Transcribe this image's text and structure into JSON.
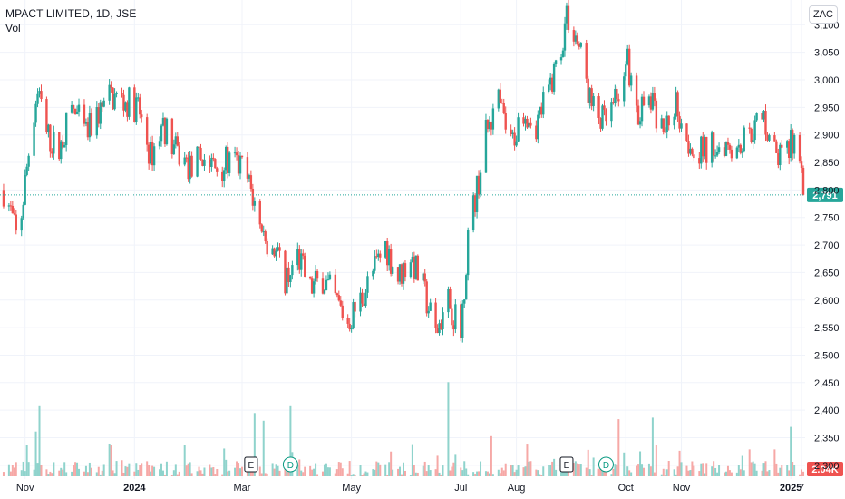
{
  "header": {
    "title": "MPACT LIMITED, 1D, JSE",
    "volume_label": "Vol"
  },
  "currency_button": "ZAC",
  "colors": {
    "up": "#26a69a",
    "down": "#ef5350",
    "up_volume": "#8fd3cc",
    "down_volume": "#f6a8a6",
    "grid": "#f0f3fa",
    "axis_text": "#131722",
    "last_price_line": "#26a69a"
  },
  "event_markers": [
    {
      "label": "E",
      "type": "earnings",
      "date": "2024-03-06"
    },
    {
      "label": "D",
      "type": "dividend",
      "date": "2024-03-28"
    },
    {
      "label": "E",
      "type": "earnings",
      "date": "2024-08-29"
    },
    {
      "label": "D",
      "type": "dividend",
      "date": "2024-09-20"
    }
  ],
  "chart_data": {
    "type": "candlestick",
    "title": "MPACT LIMITED, 1D, JSE",
    "currency": "ZAC",
    "y_axis": {
      "ticks": [
        "2,300",
        "2,350",
        "2,400",
        "2,450",
        "2,500",
        "2,550",
        "2,600",
        "2,650",
        "2,700",
        "2,750",
        "2,800",
        "2,850",
        "2,900",
        "2,950",
        "3,000",
        "3,050",
        "3,100"
      ],
      "range": [
        2275,
        3145
      ]
    },
    "x_axis": {
      "ticks": [
        "Nov",
        "2024",
        "Mar",
        "May",
        "Jul",
        "Aug",
        "Oct",
        "Nov",
        "2025",
        "7"
      ],
      "range": [
        "2023-10-18",
        "2025-01-09"
      ]
    },
    "last_price": "2,791",
    "last_volume": "2.04K",
    "price_path": [
      [
        "2023-10-20",
        2800
      ],
      [
        "2023-10-24",
        2760
      ],
      [
        "2023-10-28",
        2700
      ],
      [
        "2023-11-03",
        2870
      ],
      [
        "2023-11-08",
        2990
      ],
      [
        "2023-11-13",
        2900
      ],
      [
        "2023-11-20",
        2870
      ],
      [
        "2023-11-27",
        2950
      ],
      [
        "2023-12-05",
        2900
      ],
      [
        "2023-12-12",
        2940
      ],
      [
        "2023-12-19",
        2970
      ],
      [
        "2024-01-03",
        2950
      ],
      [
        "2024-01-10",
        2860
      ],
      [
        "2024-01-17",
        2920
      ],
      [
        "2024-01-24",
        2870
      ],
      [
        "2024-02-01",
        2840
      ],
      [
        "2024-02-08",
        2860
      ],
      [
        "2024-02-15",
        2840
      ],
      [
        "2024-02-22",
        2850
      ],
      [
        "2024-03-01",
        2840
      ],
      [
        "2024-03-06",
        2800
      ],
      [
        "2024-03-12",
        2720
      ],
      [
        "2024-03-18",
        2700
      ],
      [
        "2024-03-25",
        2640
      ],
      [
        "2024-04-01",
        2680
      ],
      [
        "2024-04-08",
        2620
      ],
      [
        "2024-04-15",
        2640
      ],
      [
        "2024-04-22",
        2600
      ],
      [
        "2024-04-29",
        2560
      ],
      [
        "2024-05-06",
        2600
      ],
      [
        "2024-05-13",
        2650
      ],
      [
        "2024-05-20",
        2700
      ],
      [
        "2024-05-27",
        2640
      ],
      [
        "2024-06-03",
        2680
      ],
      [
        "2024-06-10",
        2620
      ],
      [
        "2024-06-17",
        2540
      ],
      [
        "2024-06-24",
        2600
      ],
      [
        "2024-07-01",
        2540
      ],
      [
        "2024-07-05",
        2720
      ],
      [
        "2024-07-10",
        2800
      ],
      [
        "2024-07-15",
        2900
      ],
      [
        "2024-07-22",
        2960
      ],
      [
        "2024-07-29",
        2880
      ],
      [
        "2024-08-05",
        2950
      ],
      [
        "2024-08-12",
        2920
      ],
      [
        "2024-08-19",
        2980
      ],
      [
        "2024-08-26",
        3060
      ],
      [
        "2024-08-29",
        3120
      ],
      [
        "2024-09-05",
        3060
      ],
      [
        "2024-09-12",
        2950
      ],
      [
        "2024-09-19",
        2920
      ],
      [
        "2024-09-26",
        2960
      ],
      [
        "2024-10-01",
        3050
      ],
      [
        "2024-10-08",
        2940
      ],
      [
        "2024-10-15",
        2960
      ],
      [
        "2024-10-22",
        2900
      ],
      [
        "2024-10-29",
        2960
      ],
      [
        "2024-11-05",
        2890
      ],
      [
        "2024-11-12",
        2870
      ],
      [
        "2024-11-19",
        2880
      ],
      [
        "2024-11-26",
        2890
      ],
      [
        "2024-12-03",
        2880
      ],
      [
        "2024-12-10",
        2910
      ],
      [
        "2024-12-17",
        2930
      ],
      [
        "2024-12-24",
        2860
      ],
      [
        "2024-12-31",
        2870
      ],
      [
        "2025-01-03",
        2900
      ],
      [
        "2025-01-06",
        2850
      ],
      [
        "2025-01-08",
        2791
      ]
    ],
    "volume_spikes": [
      [
        "2023-11-07",
        2.9
      ],
      [
        "2023-11-09",
        4.6
      ],
      [
        "2024-03-08",
        4.1
      ],
      [
        "2024-03-13",
        3.6
      ],
      [
        "2024-03-28",
        4.6
      ],
      [
        "2024-06-24",
        6.1
      ],
      [
        "2024-07-18",
        2.6
      ],
      [
        "2024-09-27",
        3.7
      ],
      [
        "2024-10-16",
        3.8
      ],
      [
        "2025-01-01",
        3.2
      ]
    ]
  }
}
